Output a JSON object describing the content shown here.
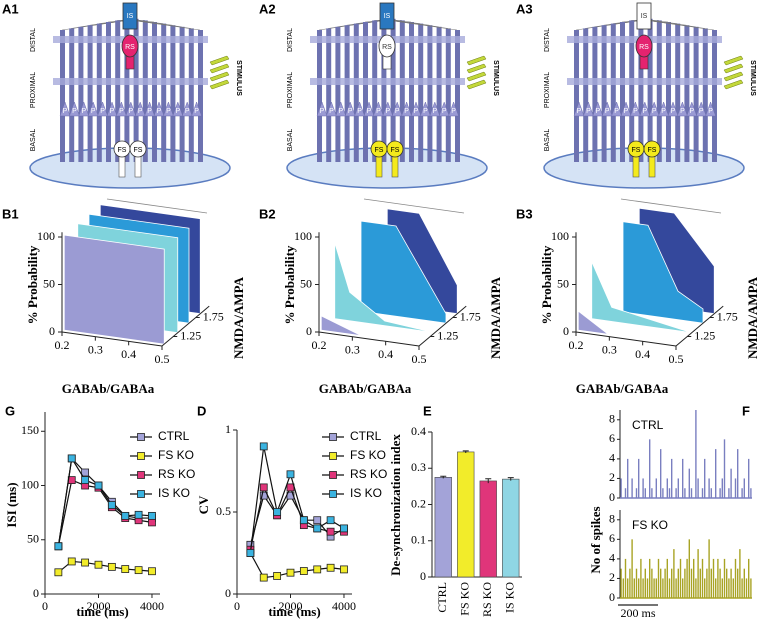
{
  "diagrams": [
    {
      "label": "A1",
      "layers": [
        "DISTAL",
        "PROXIMAL",
        "BASAL"
      ],
      "stimulus": "STIMULUS",
      "is": "IS",
      "rs": "RS",
      "fs": [
        "FS",
        "FS"
      ],
      "pyramidal": "P",
      "is_color": "#2a78c0",
      "rs_color": "#e4236f",
      "fs_color": "#ffffff"
    },
    {
      "label": "A2",
      "layers": [
        "DISTAL",
        "PROXIMAL",
        "BASAL"
      ],
      "stimulus": "STIMULUS",
      "is": "IS",
      "rs": "RS",
      "fs": [
        "FS",
        "FS"
      ],
      "pyramidal": "P",
      "is_color": "#2a78c0",
      "rs_color": "#ffffff",
      "fs_color": "#f4ea1c"
    },
    {
      "label": "A3",
      "layers": [
        "DISTAL",
        "PROXIMAL",
        "BASAL"
      ],
      "stimulus": "STIMULUS",
      "is": "IS",
      "rs": "RS",
      "fs": [
        "FS",
        "FS"
      ],
      "pyramidal": "P",
      "is_color": "#ffffff",
      "rs_color": "#e4236f",
      "fs_color": "#f4ea1c"
    }
  ],
  "chart_data": [
    {
      "type": "surface3d",
      "label": "B1",
      "ylabel": "% Probability",
      "xlabel": "GABAb/GABAa",
      "zlabel": "NMDA/AMPA",
      "ylim": [
        0,
        100
      ],
      "yticks": [
        0,
        50,
        100
      ],
      "xlim": [
        0.2,
        0.5
      ],
      "xticks": [
        0.2,
        0.3,
        0.4,
        0.5
      ],
      "zlim": [
        1,
        2
      ],
      "zticks": [
        1.25,
        1.75
      ],
      "colors": [
        "#9b9bd3",
        "#7fd3dc",
        "#2b9ad8",
        "#34489c"
      ]
    },
    {
      "type": "surface3d",
      "label": "B2",
      "ylabel": "% Probability",
      "xlabel": "GABAb/GABAa",
      "zlabel": "NMDA/AMPA",
      "ylim": [
        0,
        100
      ],
      "yticks": [
        0,
        50,
        100
      ],
      "xlim": [
        0.2,
        0.5
      ],
      "xticks": [
        0.2,
        0.3,
        0.4,
        0.5
      ],
      "zlim": [
        1,
        2
      ],
      "zticks": [
        1.25,
        1.75
      ],
      "colors": [
        "#9b9bd3",
        "#7fd3dc",
        "#2b9ad8",
        "#34489c"
      ]
    },
    {
      "type": "surface3d",
      "label": "B3",
      "ylabel": "% Probability",
      "xlabel": "GABAb/GABAa",
      "zlabel": "NMDA/AMPA",
      "ylim": [
        0,
        100
      ],
      "yticks": [
        0,
        50,
        100
      ],
      "xlim": [
        0.2,
        0.5
      ],
      "xticks": [
        0.2,
        0.3,
        0.4,
        0.5
      ],
      "zlim": [
        1,
        2
      ],
      "zticks": [
        1.25,
        1.75
      ],
      "colors": [
        "#9b9bd3",
        "#7fd3dc",
        "#2b9ad8",
        "#34489c"
      ]
    },
    {
      "type": "line",
      "label": "G",
      "xlabel": "time (ms)",
      "ylabel": "ISI (ms)",
      "x": [
        500,
        1000,
        1500,
        2000,
        2500,
        3000,
        3500,
        4000
      ],
      "xlim": [
        0,
        4300
      ],
      "xticks": [
        0,
        2000,
        4000
      ],
      "ylim": [
        0,
        165
      ],
      "yticks": [
        0,
        50,
        100,
        150
      ],
      "series": [
        {
          "name": "CTRL",
          "color": "#a3a3d8",
          "values": [
            44,
            125,
            112,
            100,
            85,
            72,
            70,
            70
          ]
        },
        {
          "name": "FS KO",
          "color": "#f2ec2a",
          "values": [
            20,
            30,
            29,
            27,
            25,
            23,
            22,
            21
          ]
        },
        {
          "name": "RS KO",
          "color": "#e0357a",
          "values": [
            44,
            105,
            100,
            98,
            80,
            70,
            68,
            66
          ]
        },
        {
          "name": "IS KO",
          "color": "#3ab3e0",
          "values": [
            44,
            125,
            105,
            100,
            82,
            72,
            73,
            72
          ]
        }
      ]
    },
    {
      "type": "line",
      "label": "D",
      "xlabel": "time (ms)",
      "ylabel": "CV",
      "x": [
        500,
        1000,
        1500,
        2000,
        2500,
        3000,
        3500,
        4000
      ],
      "xlim": [
        0,
        4300
      ],
      "xticks": [
        0,
        2000,
        4000
      ],
      "ylim": [
        0,
        1
      ],
      "yticks": [
        0,
        0.5,
        1
      ],
      "series": [
        {
          "name": "CTRL",
          "color": "#a3a3d8",
          "values": [
            0.3,
            0.6,
            0.48,
            0.6,
            0.45,
            0.45,
            0.35,
            0.4
          ]
        },
        {
          "name": "FS KO",
          "color": "#f2ec2a",
          "values": [
            0.25,
            0.1,
            0.11,
            0.13,
            0.14,
            0.15,
            0.16,
            0.15
          ]
        },
        {
          "name": "RS KO",
          "color": "#e0357a",
          "values": [
            0.27,
            0.65,
            0.48,
            0.65,
            0.42,
            0.4,
            0.38,
            0.38
          ]
        },
        {
          "name": "IS KO",
          "color": "#3ab3e0",
          "values": [
            0.25,
            0.9,
            0.5,
            0.73,
            0.45,
            0.4,
            0.45,
            0.4
          ]
        }
      ]
    },
    {
      "type": "bar",
      "label": "E",
      "ylabel": "De-synchronization  index",
      "categories": [
        "CTRL",
        "FS KO",
        "RS KO",
        "IS KO"
      ],
      "values": [
        0.275,
        0.345,
        0.265,
        0.27
      ],
      "errors": [
        0.003,
        0.003,
        0.006,
        0.004
      ],
      "colors": [
        "#a3a3d8",
        "#f2ec2a",
        "#e0357a",
        "#8fd6e4"
      ],
      "ylim": [
        0,
        0.4
      ],
      "yticks": [
        0,
        0.1,
        0.2,
        0.3,
        0.4
      ]
    },
    {
      "type": "spikes",
      "label": "F",
      "title": "CTRL",
      "ylabel": "No of spikes",
      "color": "#7a7fc0",
      "ylim": [
        0,
        9
      ],
      "yticks": [
        0,
        2,
        4,
        6,
        8
      ],
      "values": [
        2,
        0,
        1,
        4,
        0,
        2,
        0,
        1,
        4,
        0,
        2,
        1,
        0,
        6,
        1,
        0,
        2,
        0,
        5,
        1,
        0,
        2,
        1,
        4,
        0,
        1,
        2,
        0,
        4,
        1,
        0,
        3,
        1,
        0,
        9,
        2,
        0,
        1,
        4,
        0,
        2,
        1,
        0,
        5,
        0,
        1,
        2,
        6,
        0,
        1,
        3,
        0,
        2,
        5,
        0,
        1,
        2,
        0,
        4,
        1
      ]
    },
    {
      "type": "spikes",
      "title": "FS KO",
      "color": "#a8a424",
      "ylim": [
        0,
        9
      ],
      "yticks": [
        0,
        2,
        4,
        6,
        8
      ],
      "scale_bar": "200 ms",
      "values": [
        3,
        2,
        4,
        2,
        3,
        6,
        2,
        3,
        2,
        4,
        2,
        3,
        2,
        4,
        3,
        2,
        2,
        4,
        3,
        2,
        3,
        4,
        2,
        3,
        5,
        2,
        3,
        4,
        2,
        3,
        4,
        6,
        3,
        4,
        2,
        5,
        3,
        4,
        2,
        3,
        6,
        3,
        4,
        2,
        4,
        3,
        2,
        4,
        3,
        2,
        3,
        2,
        4,
        3,
        5,
        2,
        3,
        2,
        4,
        2
      ]
    }
  ]
}
